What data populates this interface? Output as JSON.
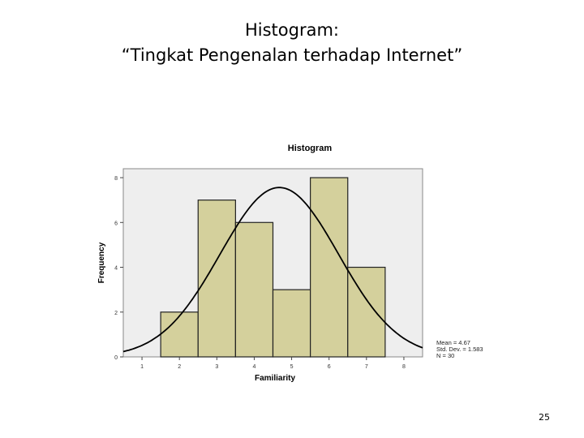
{
  "slide": {
    "title_line1": "Histogram:",
    "title_line2": "“Tingkat Pengenalan terhadap Internet”",
    "page_number": "25"
  },
  "chart_data": {
    "type": "bar",
    "title": "Histogram",
    "xlabel": "Familiarity",
    "ylabel": "Frequency",
    "x_ticks": [
      1,
      2,
      3,
      4,
      5,
      6,
      7,
      8
    ],
    "y_ticks": [
      0,
      2,
      4,
      6,
      8
    ],
    "xlim": [
      0.5,
      8.5
    ],
    "ylim": [
      0,
      8.4
    ],
    "bins": [
      {
        "x0": 1.5,
        "x1": 2.5,
        "value": 2
      },
      {
        "x0": 2.5,
        "x1": 3.5,
        "value": 7
      },
      {
        "x0": 3.5,
        "x1": 4.5,
        "value": 6
      },
      {
        "x0": 4.5,
        "x1": 5.5,
        "value": 3
      },
      {
        "x0": 5.5,
        "x1": 6.5,
        "value": 8
      },
      {
        "x0": 6.5,
        "x1": 7.5,
        "value": 4
      }
    ],
    "normal_curve": {
      "mean": 4.67,
      "std_dev": 1.583,
      "n": 30
    },
    "stats_labels": [
      "Mean = 4.67",
      "Std. Dev. = 1.583",
      "N = 30"
    ],
    "colors": {
      "plot_background": "#eeeeee",
      "bar_fill": "#d4d09c",
      "bar_stroke": "#222222",
      "curve": "#000000"
    },
    "grid": false
  }
}
